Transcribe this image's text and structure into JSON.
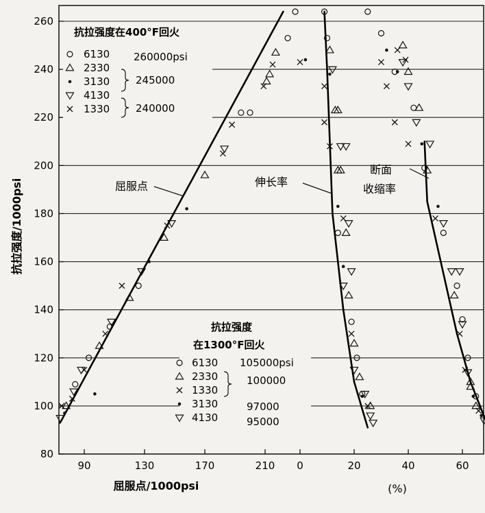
{
  "chart_data": {
    "type": "scatter",
    "ylabel": "抗拉强度/1000psi",
    "xlabel_left": "屈服点/1000psi",
    "xlabel_right": "(%)",
    "y_ticks": [
      "80",
      "100",
      "120",
      "140",
      "160",
      "180",
      "200",
      "220",
      "240",
      "260"
    ],
    "x_ticks_left": [
      "90",
      "130",
      "170",
      "210"
    ],
    "x_ticks_right": [
      "0",
      "20",
      "40",
      "60"
    ],
    "ylim": [
      80,
      262
    ],
    "xlim_left": [
      72,
      232
    ],
    "xlim_right": [
      0,
      71
    ],
    "curve_labels": {
      "yield": "屈服点",
      "elongation": "伸长率",
      "reduction_l1": "断面",
      "reduction_l2": "收缩率"
    },
    "legend_top": {
      "title": "抗拉强度在400°F回火",
      "entries": [
        {
          "marker": "circle",
          "label": "6130"
        },
        {
          "marker": "triangle-up",
          "label": "2330"
        },
        {
          "marker": "dot",
          "label": "3130"
        },
        {
          "marker": "triangle-down",
          "label": "4130"
        },
        {
          "marker": "cross",
          "label": "1330"
        }
      ],
      "values": [
        "260000psi",
        "245000",
        "240000"
      ]
    },
    "legend_bottom": {
      "title_l1": "抗拉强度",
      "title_l2": "在1300°F回火",
      "entries": [
        {
          "marker": "circle",
          "label": "6130"
        },
        {
          "marker": "triangle-up",
          "label": "2330"
        },
        {
          "marker": "cross",
          "label": "1330"
        },
        {
          "marker": "dot",
          "label": "3130"
        },
        {
          "marker": "triangle-down",
          "label": "4130"
        }
      ],
      "values": [
        "105000psi",
        "100000",
        "97000",
        "95000"
      ]
    },
    "yield_line": [
      [
        74,
        93
      ],
      [
        222,
        264
      ]
    ],
    "elongation_line": [
      [
        9,
        264
      ],
      [
        10,
        240
      ],
      [
        12,
        180
      ],
      [
        16,
        140
      ],
      [
        20,
        110
      ],
      [
        25,
        91
      ]
    ],
    "reduction_line": [
      [
        46,
        210
      ],
      [
        47,
        185
      ],
      [
        52,
        160
      ],
      [
        58,
        130
      ],
      [
        63,
        110
      ],
      [
        70,
        90
      ]
    ],
    "yield_points": [
      [
        74,
        95,
        "triangle-down"
      ],
      [
        75,
        100,
        "cross"
      ],
      [
        77,
        97,
        "dot"
      ],
      [
        78,
        100,
        "triangle-up"
      ],
      [
        82,
        103,
        "cross"
      ],
      [
        83,
        106,
        "triangle-down"
      ],
      [
        84,
        109,
        "circle"
      ],
      [
        88,
        115,
        "triangle-down"
      ],
      [
        90,
        115,
        "cross"
      ],
      [
        93,
        120,
        "circle"
      ],
      [
        97,
        105,
        "dot"
      ],
      [
        100,
        125,
        "triangle-up"
      ],
      [
        104,
        130,
        "cross"
      ],
      [
        107,
        133,
        "circle"
      ],
      [
        108,
        135,
        "triangle-down"
      ],
      [
        115,
        150,
        "cross"
      ],
      [
        120,
        145,
        "triangle-up"
      ],
      [
        126,
        150,
        "circle"
      ],
      [
        128,
        156,
        "triangle-down"
      ],
      [
        133,
        160,
        "dot"
      ],
      [
        143,
        170,
        "triangle-up"
      ],
      [
        145,
        175,
        "cross"
      ],
      [
        148,
        176,
        "triangle-down"
      ],
      [
        158,
        182,
        "dot"
      ],
      [
        170,
        196,
        "triangle-up"
      ],
      [
        182,
        205,
        "cross"
      ],
      [
        183,
        207,
        "triangle-down"
      ],
      [
        188,
        217,
        "cross"
      ],
      [
        194,
        222,
        "circle"
      ],
      [
        200,
        222,
        "circle"
      ],
      [
        209,
        233,
        "cross"
      ],
      [
        211,
        235,
        "triangle-up"
      ],
      [
        213,
        238,
        "triangle-up"
      ],
      [
        215,
        242,
        "cross"
      ],
      [
        217,
        247,
        "triangle-up"
      ],
      [
        225,
        253,
        "circle"
      ],
      [
        230,
        264,
        "circle"
      ]
    ],
    "elongation_points": [
      [
        9,
        264,
        "circle"
      ],
      [
        10,
        253,
        "circle"
      ],
      [
        11,
        248,
        "triangle-up"
      ],
      [
        12,
        240,
        "triangle-down"
      ],
      [
        11,
        238,
        "dot"
      ],
      [
        9,
        233,
        "cross"
      ],
      [
        13,
        223,
        "triangle-up"
      ],
      [
        14,
        223,
        "triangle-up"
      ],
      [
        9,
        218,
        "cross"
      ],
      [
        11,
        208,
        "cross"
      ],
      [
        15,
        208,
        "triangle-down"
      ],
      [
        17,
        208,
        "triangle-down"
      ],
      [
        14,
        198,
        "triangle-up"
      ],
      [
        15,
        198,
        "triangle-up"
      ],
      [
        14,
        183,
        "dot"
      ],
      [
        16,
        178,
        "cross"
      ],
      [
        18,
        176,
        "triangle-down"
      ],
      [
        14,
        172,
        "circle"
      ],
      [
        17,
        172,
        "triangle-up"
      ],
      [
        16,
        158,
        "dot"
      ],
      [
        19,
        156,
        "triangle-down"
      ],
      [
        16,
        150,
        "triangle-down"
      ],
      [
        18,
        146,
        "triangle-up"
      ],
      [
        19,
        135,
        "circle"
      ],
      [
        19,
        130,
        "cross"
      ],
      [
        20,
        126,
        "triangle-up"
      ],
      [
        21,
        120,
        "circle"
      ],
      [
        20,
        115,
        "triangle-down"
      ],
      [
        22,
        112,
        "triangle-up"
      ],
      [
        23,
        105,
        "circle"
      ],
      [
        24,
        105,
        "triangle-down"
      ],
      [
        23,
        104,
        "dot"
      ],
      [
        26,
        100,
        "triangle-up"
      ],
      [
        25,
        100,
        "cross"
      ],
      [
        26,
        96,
        "triangle-down"
      ],
      [
        27,
        93,
        "triangle-down"
      ],
      [
        0,
        243,
        "cross"
      ],
      [
        2,
        244,
        "dot"
      ]
    ],
    "reduction_points": [
      [
        25,
        264,
        "circle"
      ],
      [
        30,
        255,
        "circle"
      ],
      [
        32,
        248,
        "dot"
      ],
      [
        38,
        250,
        "triangle-up"
      ],
      [
        30,
        243,
        "cross"
      ],
      [
        38,
        243,
        "triangle-down"
      ],
      [
        35,
        239,
        "circle"
      ],
      [
        36,
        239,
        "dot"
      ],
      [
        40,
        239,
        "triangle-up"
      ],
      [
        32,
        233,
        "cross"
      ],
      [
        40,
        233,
        "triangle-down"
      ],
      [
        42,
        224,
        "circle"
      ],
      [
        44,
        224,
        "triangle-up"
      ],
      [
        35,
        218,
        "cross"
      ],
      [
        43,
        218,
        "triangle-down"
      ],
      [
        40,
        209,
        "cross"
      ],
      [
        45,
        209,
        "dot"
      ],
      [
        48,
        209,
        "triangle-down"
      ],
      [
        46,
        199,
        "circle"
      ],
      [
        47,
        198,
        "triangle-up"
      ],
      [
        51,
        183,
        "dot"
      ],
      [
        50,
        178,
        "cross"
      ],
      [
        53,
        176,
        "triangle-down"
      ],
      [
        53,
        172,
        "circle"
      ],
      [
        56,
        156,
        "triangle-down"
      ],
      [
        58,
        150,
        "circle"
      ],
      [
        57,
        146,
        "triangle-up"
      ],
      [
        60,
        136,
        "circle"
      ],
      [
        60,
        134,
        "triangle-down"
      ],
      [
        59,
        130,
        "cross"
      ],
      [
        62,
        120,
        "circle"
      ],
      [
        61,
        115,
        "cross"
      ],
      [
        62,
        114,
        "triangle-down"
      ],
      [
        63,
        108,
        "triangle-up"
      ],
      [
        64,
        104,
        "dot"
      ],
      [
        65,
        104,
        "circle"
      ],
      [
        65,
        100,
        "triangle-up"
      ],
      [
        66,
        98,
        "cross"
      ],
      [
        67,
        96,
        "dot"
      ],
      [
        68,
        94,
        "triangle-down"
      ],
      [
        39,
        244,
        "cross"
      ],
      [
        36,
        248,
        "cross"
      ],
      [
        59,
        156,
        "triangle-down"
      ],
      [
        63,
        110,
        "triangle-up"
      ]
    ]
  }
}
